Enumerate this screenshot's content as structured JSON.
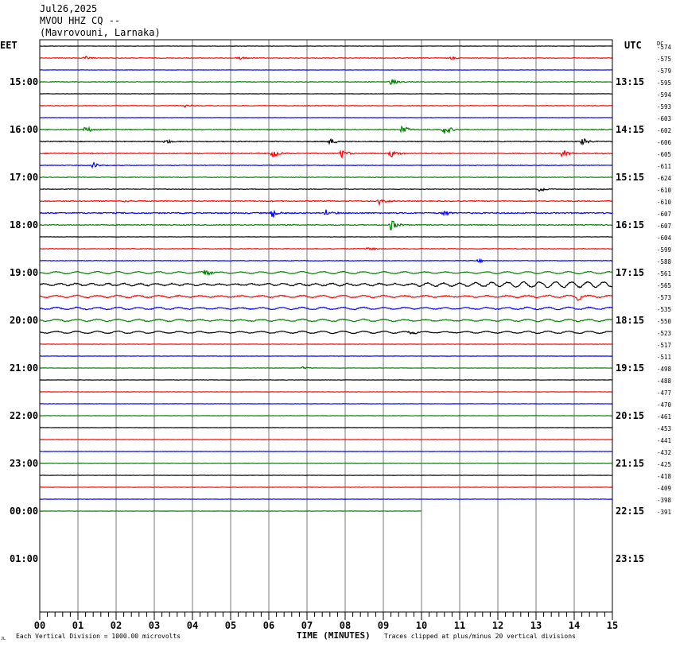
{
  "header": {
    "date": "Jul26,2025",
    "station": "MVOU HHZ CQ --",
    "location": "(Mavrovouni, Larnaka)"
  },
  "left_zone": "EET",
  "right_zone": "UTC",
  "dc_label": "DC",
  "footer": {
    "scale_note": "Each Vertical Division = 1000.00 microvolts",
    "clip_note": "Traces clipped at plus/minus 20 vertical divisions",
    "corner_mark": "JL"
  },
  "chart_data": {
    "type": "line",
    "title": "MVOU HHZ CQ --",
    "xlabel": "TIME (MINUTES)",
    "ylabel": "",
    "x_ticks": [
      "00",
      "01",
      "02",
      "03",
      "04",
      "05",
      "06",
      "07",
      "08",
      "09",
      "10",
      "11",
      "12",
      "13",
      "14",
      "15"
    ],
    "xlim": [
      0,
      15
    ],
    "grid": true,
    "left_time_labels": [
      "15:00",
      "16:00",
      "17:00",
      "18:00",
      "19:00",
      "20:00",
      "21:00",
      "22:00",
      "23:00",
      "00:00",
      "01:00"
    ],
    "right_time_labels": [
      "13:15",
      "14:15",
      "15:15",
      "16:15",
      "17:15",
      "18:15",
      "19:15",
      "20:15",
      "21:15",
      "22:15",
      "23:15"
    ],
    "trace_colors": [
      "#000000",
      "#ff0000",
      "#0000ff",
      "#008000"
    ],
    "last_trace_end_minute": 10,
    "dc_offsets": [
      "-574",
      "-575",
      "-579",
      "-595",
      "-594",
      "-593",
      "-603",
      "-602",
      "-606",
      "-605",
      "-611",
      "-624",
      "-610",
      "-610",
      "-607",
      "-607",
      "-604",
      "-599",
      "-588",
      "-561",
      "-565",
      "-573",
      "-535",
      "-550",
      "-523",
      "-517",
      "-511",
      "-498",
      "-488",
      "-477",
      "-470",
      "-461",
      "-453",
      "-441",
      "-432",
      "-425",
      "-418",
      "-409",
      "-398",
      "-391"
    ],
    "trace_activity": [
      1,
      2,
      1,
      2,
      1,
      2,
      1,
      3,
      3,
      3,
      2,
      2,
      2,
      3,
      4,
      3,
      1,
      2,
      2,
      2,
      4,
      3,
      3,
      3,
      2,
      1,
      1,
      1,
      1,
      1,
      1,
      1,
      1,
      1,
      1,
      1,
      1,
      1,
      1,
      1
    ],
    "events": [
      {
        "trace": 1,
        "minute": 1.2,
        "amplitude": 2
      },
      {
        "trace": 1,
        "minute": 5.2,
        "amplitude": 3
      },
      {
        "trace": 1,
        "minute": 10.8,
        "amplitude": 2
      },
      {
        "trace": 3,
        "minute": 9.2,
        "amplitude": 4
      },
      {
        "trace": 5,
        "minute": 3.8,
        "amplitude": 2
      },
      {
        "trace": 7,
        "minute": 1.2,
        "amplitude": 5
      },
      {
        "trace": 7,
        "minute": 9.5,
        "amplitude": 5
      },
      {
        "trace": 7,
        "minute": 10.6,
        "amplitude": 7
      },
      {
        "trace": 8,
        "minute": 3.3,
        "amplitude": 3
      },
      {
        "trace": 8,
        "minute": 7.6,
        "amplitude": 4
      },
      {
        "trace": 8,
        "minute": 14.2,
        "amplitude": 5
      },
      {
        "trace": 9,
        "minute": 6.1,
        "amplitude": 6
      },
      {
        "trace": 9,
        "minute": 7.9,
        "amplitude": 6
      },
      {
        "trace": 9,
        "minute": 9.2,
        "amplitude": 5
      },
      {
        "trace": 9,
        "minute": 13.7,
        "amplitude": 6
      },
      {
        "trace": 10,
        "minute": 1.4,
        "amplitude": 4
      },
      {
        "trace": 12,
        "minute": 13.1,
        "amplitude": 4
      },
      {
        "trace": 13,
        "minute": 2.2,
        "amplitude": 3
      },
      {
        "trace": 13,
        "minute": 8.9,
        "amplitude": 6
      },
      {
        "trace": 14,
        "minute": 6.1,
        "amplitude": 7
      },
      {
        "trace": 14,
        "minute": 7.5,
        "amplitude": 4
      },
      {
        "trace": 14,
        "minute": 10.6,
        "amplitude": 4
      },
      {
        "trace": 15,
        "minute": 9.2,
        "amplitude": 8
      },
      {
        "trace": 17,
        "minute": 8.6,
        "amplitude": 3
      },
      {
        "trace": 18,
        "minute": 11.5,
        "amplitude": 3
      },
      {
        "trace": 19,
        "minute": 4.3,
        "amplitude": 8
      },
      {
        "trace": 21,
        "minute": 14.1,
        "amplitude": 4
      },
      {
        "trace": 24,
        "minute": 9.7,
        "amplitude": 3
      },
      {
        "trace": 27,
        "minute": 6.9,
        "amplitude": 2
      }
    ]
  }
}
